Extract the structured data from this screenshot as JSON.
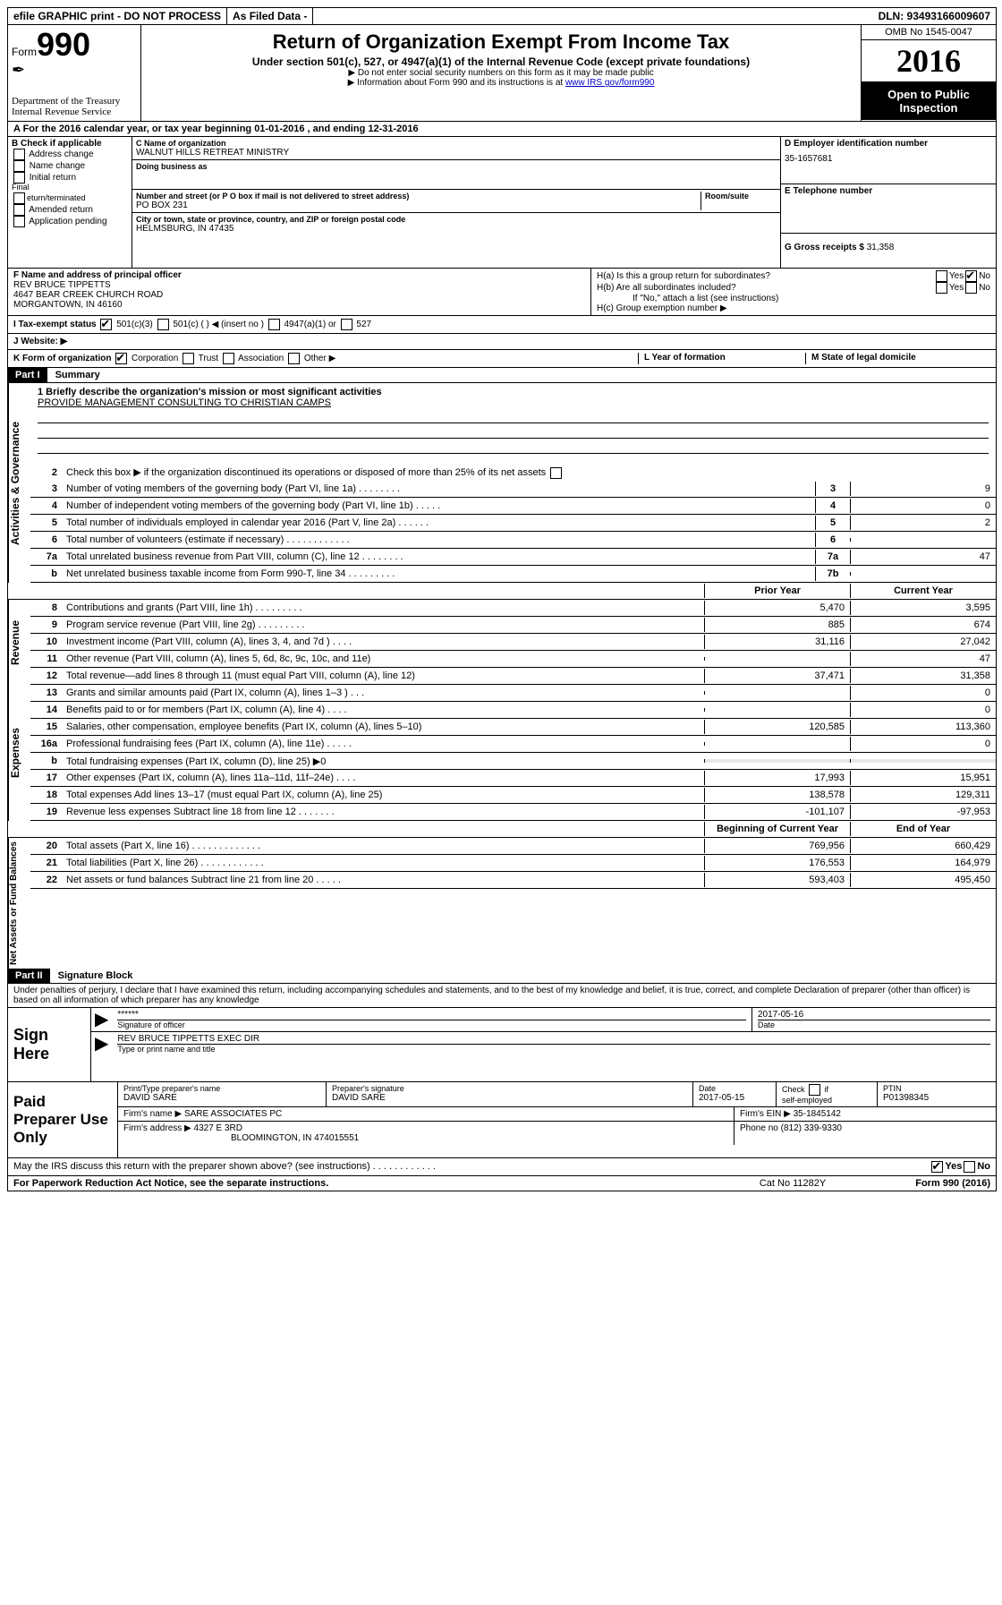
{
  "top_bar": {
    "efile": "efile GRAPHIC print - DO NOT PROCESS",
    "as_filed": "As Filed Data -",
    "dln": "DLN: 93493166009607"
  },
  "header": {
    "form_prefix": "Form",
    "form_number": "990",
    "dept": "Department of the Treasury",
    "irs": "Internal Revenue Service",
    "title": "Return of Organization Exempt From Income Tax",
    "subtitle": "Under section 501(c), 527, or 4947(a)(1) of the Internal Revenue Code (except private foundations)",
    "note1": "▶ Do not enter social security numbers on this form as it may be made public",
    "note2_prefix": "▶ Information about Form 990 and its instructions is at ",
    "note2_link": "www IRS gov/form990",
    "omb": "OMB No 1545-0047",
    "year": "2016",
    "open": "Open to Public Inspection"
  },
  "row_a": "A   For the 2016 calendar year, or tax year beginning 01-01-2016   , and ending 12-31-2016",
  "section_b": {
    "b_label": "B Check if applicable",
    "checks": [
      "Address change",
      "Name change",
      "Initial return",
      "Final return/terminated",
      "Amended return",
      "Application pending"
    ],
    "c_label": "C Name of organization",
    "org_name": "WALNUT HILLS RETREAT MINISTRY",
    "dba_label": "Doing business as",
    "street_label": "Number and street (or P O  box if mail is not delivered to street address)",
    "room_label": "Room/suite",
    "street": "PO BOX 231",
    "city_label": "City or town, state or province, country, and ZIP or foreign postal code",
    "city": "HELMSBURG, IN  47435",
    "d_label": "D Employer identification number",
    "ein": "35-1657681",
    "e_label": "E Telephone number",
    "g_label": "G Gross receipts $",
    "gross": "31,358"
  },
  "section_f": {
    "f_label": "F   Name and address of principal officer",
    "officer1": "REV BRUCE TIPPETTS",
    "officer2": "4647 BEAR CREEK CHURCH ROAD",
    "officer3": "MORGANTOWN, IN  46160",
    "ha": "H(a)  Is this a group return for subordinates?",
    "hb": "H(b)  Are all subordinates included?",
    "hb_note": "If \"No,\" attach a list  (see instructions)",
    "hc": "H(c)  Group exemption number ▶",
    "yes": "Yes",
    "no": "No"
  },
  "row_i": {
    "label": "I   Tax-exempt status",
    "opt1": "501(c)(3)",
    "opt2": "501(c) (   ) ◀ (insert no )",
    "opt3": "4947(a)(1) or",
    "opt4": "527"
  },
  "row_j": "J   Website: ▶",
  "row_k": {
    "label": "K Form of organization",
    "opt1": "Corporation",
    "opt2": "Trust",
    "opt3": "Association",
    "opt4": "Other ▶",
    "l_label": "L Year of formation",
    "m_label": "M State of legal domicile"
  },
  "part1": {
    "header": "Part I",
    "title": "Summary",
    "line1_label": "1  Briefly describe the organization's mission or most significant activities",
    "mission": "PROVIDE MANAGEMENT CONSULTING TO CHRISTIAN CAMPS",
    "line2": "Check this box ▶      if the organization discontinued its operations or disposed of more than 25% of its net assets",
    "sections": {
      "gov": "Activities & Governance",
      "rev": "Revenue",
      "exp": "Expenses",
      "net": "Net Assets or Fund Balances"
    },
    "gov_lines": [
      {
        "num": "3",
        "desc": "Number of voting members of the governing body (Part VI, line 1a)  .   .   .   .   .   .   .   .",
        "box": "3",
        "val": "9"
      },
      {
        "num": "4",
        "desc": "Number of independent voting members of the governing body (Part VI, line 1b)   .   .   .   .   .",
        "box": "4",
        "val": "0"
      },
      {
        "num": "5",
        "desc": "Total number of individuals employed in calendar year 2016 (Part V, line 2a)   .   .   .   .   .   .",
        "box": "5",
        "val": "2"
      },
      {
        "num": "6",
        "desc": "Total number of volunteers (estimate if necessary)   .   .   .   .   .   .   .   .   .   .   .   .",
        "box": "6",
        "val": ""
      },
      {
        "num": "7a",
        "desc": "Total unrelated business revenue from Part VIII, column (C), line 12   .   .   .   .   .   .   .   .",
        "box": "7a",
        "val": "47"
      },
      {
        "num": "b",
        "desc": "Net unrelated business taxable income from Form 990-T, line 34   .   .   .   .   .   .   .   .   .",
        "box": "7b",
        "val": ""
      }
    ],
    "col_headers": {
      "prior": "Prior Year",
      "current": "Current Year",
      "begin": "Beginning of Current Year",
      "end": "End of Year"
    },
    "rev_lines": [
      {
        "num": "8",
        "desc": "Contributions and grants (Part VIII, line 1h)   .   .   .   .   .   .   .   .   .",
        "prior": "5,470",
        "current": "3,595"
      },
      {
        "num": "9",
        "desc": "Program service revenue (Part VIII, line 2g)   .   .   .   .   .   .   .   .   .",
        "prior": "885",
        "current": "674"
      },
      {
        "num": "10",
        "desc": "Investment income (Part VIII, column (A), lines 3, 4, and 7d )   .   .   .   .",
        "prior": "31,116",
        "current": "27,042"
      },
      {
        "num": "11",
        "desc": "Other revenue (Part VIII, column (A), lines 5, 6d, 8c, 9c, 10c, and 11e)",
        "prior": "",
        "current": "47"
      },
      {
        "num": "12",
        "desc": "Total revenue—add lines 8 through 11 (must equal Part VIII, column (A), line 12)",
        "prior": "37,471",
        "current": "31,358"
      }
    ],
    "exp_lines": [
      {
        "num": "13",
        "desc": "Grants and similar amounts paid (Part IX, column (A), lines 1–3 )   .   .   .",
        "prior": "",
        "current": "0"
      },
      {
        "num": "14",
        "desc": "Benefits paid to or for members (Part IX, column (A), line 4)   .   .   .   .",
        "prior": "",
        "current": "0"
      },
      {
        "num": "15",
        "desc": "Salaries, other compensation, employee benefits (Part IX, column (A), lines 5–10)",
        "prior": "120,585",
        "current": "113,360"
      },
      {
        "num": "16a",
        "desc": "Professional fundraising fees (Part IX, column (A), line 11e)   .   .   .   .   .",
        "prior": "",
        "current": "0"
      },
      {
        "num": "b",
        "desc": "Total fundraising expenses (Part IX, column (D), line 25) ▶0",
        "prior": "grey",
        "current": "grey"
      },
      {
        "num": "17",
        "desc": "Other expenses (Part IX, column (A), lines 11a–11d, 11f–24e)   .   .   .   .",
        "prior": "17,993",
        "current": "15,951"
      },
      {
        "num": "18",
        "desc": "Total expenses  Add lines 13–17 (must equal Part IX, column (A), line 25)",
        "prior": "138,578",
        "current": "129,311"
      },
      {
        "num": "19",
        "desc": "Revenue less expenses  Subtract line 18 from line 12  .   .   .   .   .   .   .",
        "prior": "-101,107",
        "current": "-97,953"
      }
    ],
    "net_lines": [
      {
        "num": "20",
        "desc": "Total assets (Part X, line 16)   .   .   .   .   .   .   .   .   .   .   .   .   .",
        "prior": "769,956",
        "current": "660,429"
      },
      {
        "num": "21",
        "desc": "Total liabilities (Part X, line 26)   .   .   .   .   .   .   .   .   .   .   .   .",
        "prior": "176,553",
        "current": "164,979"
      },
      {
        "num": "22",
        "desc": "Net assets or fund balances  Subtract line 21 from line 20   .   .   .   .   .",
        "prior": "593,403",
        "current": "495,450"
      }
    ]
  },
  "part2": {
    "header": "Part II",
    "title": "Signature Block",
    "perjury": "Under penalties of perjury, I declare that I have examined this return, including accompanying schedules and statements, and to the best of my knowledge and belief, it is true, correct, and complete  Declaration of preparer (other than officer) is based on all information of which preparer has any knowledge",
    "sign_here": "Sign Here",
    "stars": "******",
    "sig_officer_label": "Signature of officer",
    "sig_date": "2017-05-16",
    "date_label": "Date",
    "officer_name": "REV BRUCE TIPPETTS  EXEC DIR",
    "type_label": "Type or print name and title",
    "paid_label": "Paid Preparer Use Only",
    "prep_name_label": "Print/Type preparer's name",
    "prep_name": "DAVID SARE",
    "prep_sig_label": "Preparer's signature",
    "prep_sig": "DAVID SARE",
    "prep_date": "2017-05-15",
    "check_self": "Check       if self-employed",
    "ptin_label": "PTIN",
    "ptin": "P01398345",
    "firm_name_label": "Firm's name   ▶",
    "firm_name": "SARE ASSOCIATES PC",
    "firm_ein_label": "Firm's EIN ▶",
    "firm_ein": "35-1845142",
    "firm_addr_label": "Firm's address ▶",
    "firm_addr1": "4327 E 3RD",
    "firm_addr2": "BLOOMINGTON, IN  474015551",
    "phone_label": "Phone no",
    "phone": "(812) 339-9330",
    "discuss": "May the IRS discuss this return with the preparer shown above? (see instructions)   .   .   .   .   .   .   .   .   .   .   .   .",
    "yes": "Yes",
    "no": "No"
  },
  "footer": {
    "left": "For Paperwork Reduction Act Notice, see the separate instructions.",
    "mid": "Cat  No  11282Y",
    "right": "Form 990 (2016)"
  }
}
